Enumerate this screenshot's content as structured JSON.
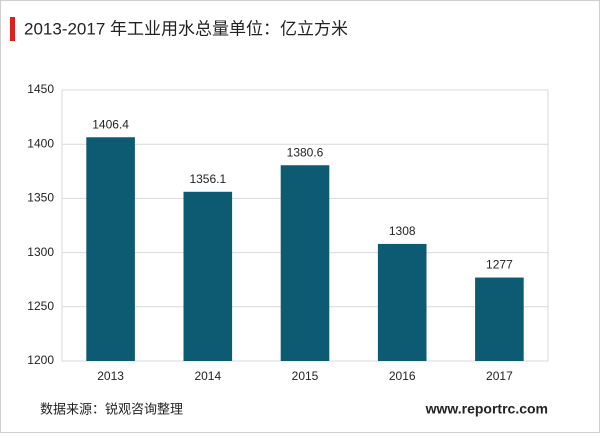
{
  "chart_data": {
    "type": "bar",
    "title": "2013-2017 年工业用水总量单位：亿立方米",
    "categories": [
      "2013",
      "2014",
      "2015",
      "2016",
      "2017"
    ],
    "values": [
      1406.4,
      1356.1,
      1380.6,
      1308,
      1277
    ],
    "color": "#0d5a73",
    "ylim": [
      1200,
      1450
    ],
    "yticks": [
      1200,
      1250,
      1300,
      1350,
      1400,
      1450
    ],
    "grid": true
  },
  "footer": {
    "source": "数据来源：锐观咨询整理",
    "website": "www.reportrc.com"
  }
}
